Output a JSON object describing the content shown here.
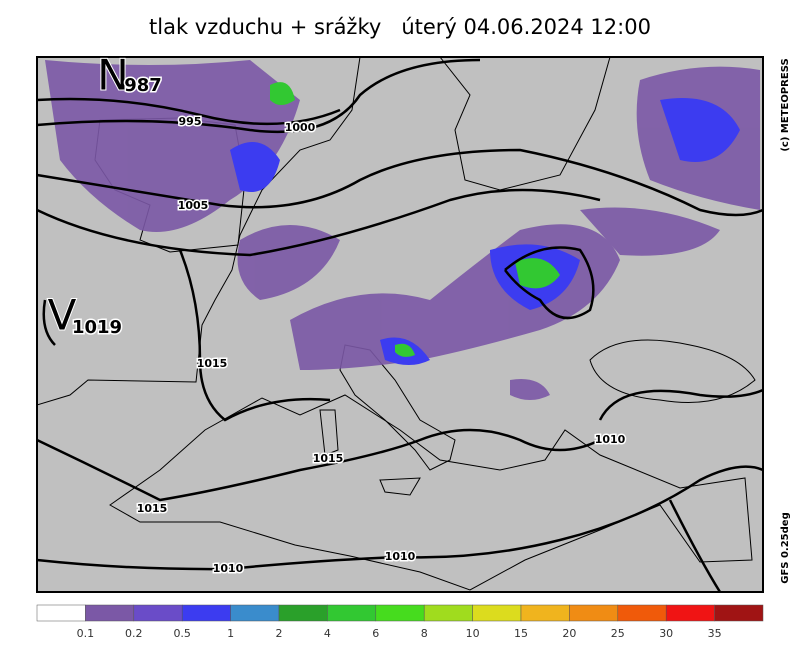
{
  "header": {
    "title": "tlak vzduchu + srážky   úterý 04.06.2024 12:00"
  },
  "pressure_centers": [
    {
      "letter": "N",
      "value": 987
    },
    {
      "letter": "V",
      "value": 1019
    }
  ],
  "isobar_labels": [
    995,
    1000,
    1005,
    1015,
    1015,
    1015,
    1010,
    1010,
    1010
  ],
  "side_text": {
    "copyright": "(c) METEOPRESS",
    "model": "GFS 0.25deg"
  },
  "legend": {
    "labels": [
      0.1,
      0.2,
      0.5,
      1,
      2,
      4,
      6,
      8,
      10,
      15,
      20,
      25,
      30,
      35
    ],
    "colors": [
      "#ffffff",
      "#7b58a6",
      "#6a4cc8",
      "#3c3cf0",
      "#3a8ccc",
      "#2aa02a",
      "#32c832",
      "#46dc1e",
      "#a0dc1e",
      "#dcdc1e",
      "#f0b41e",
      "#f08c14",
      "#f05a0a",
      "#f01414",
      "#a01414"
    ]
  }
}
